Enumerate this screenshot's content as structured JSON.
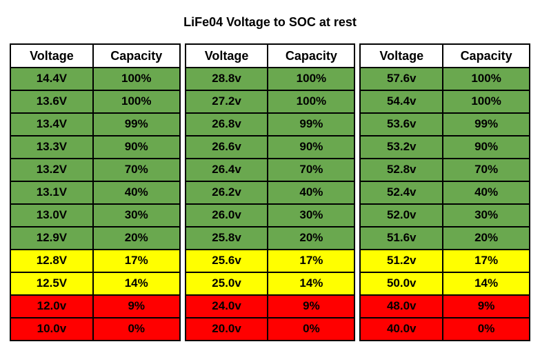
{
  "title": "LiFe04 Voltage to SOC at rest",
  "colors": {
    "green": "#6aa84f",
    "yellow": "#ffff00",
    "red": "#ff0000",
    "header_bg": "#ffffff",
    "border": "#000000",
    "text": "#000000"
  },
  "columns": [
    "Voltage",
    "Capacity"
  ],
  "tables": [
    {
      "rows": [
        {
          "voltage": "14.4V",
          "capacity": "100%",
          "color": "green"
        },
        {
          "voltage": "13.6V",
          "capacity": "100%",
          "color": "green"
        },
        {
          "voltage": "13.4V",
          "capacity": "99%",
          "color": "green"
        },
        {
          "voltage": "13.3V",
          "capacity": "90%",
          "color": "green"
        },
        {
          "voltage": "13.2V",
          "capacity": "70%",
          "color": "green"
        },
        {
          "voltage": "13.1V",
          "capacity": "40%",
          "color": "green"
        },
        {
          "voltage": "13.0V",
          "capacity": "30%",
          "color": "green"
        },
        {
          "voltage": "12.9V",
          "capacity": "20%",
          "color": "green"
        },
        {
          "voltage": "12.8V",
          "capacity": "17%",
          "color": "yellow"
        },
        {
          "voltage": "12.5V",
          "capacity": "14%",
          "color": "yellow"
        },
        {
          "voltage": "12.0v",
          "capacity": "9%",
          "color": "red"
        },
        {
          "voltage": "10.0v",
          "capacity": "0%",
          "color": "red"
        }
      ]
    },
    {
      "rows": [
        {
          "voltage": "28.8v",
          "capacity": "100%",
          "color": "green"
        },
        {
          "voltage": "27.2v",
          "capacity": "100%",
          "color": "green"
        },
        {
          "voltage": "26.8v",
          "capacity": "99%",
          "color": "green"
        },
        {
          "voltage": "26.6v",
          "capacity": "90%",
          "color": "green"
        },
        {
          "voltage": "26.4v",
          "capacity": "70%",
          "color": "green"
        },
        {
          "voltage": "26.2v",
          "capacity": "40%",
          "color": "green"
        },
        {
          "voltage": "26.0v",
          "capacity": "30%",
          "color": "green"
        },
        {
          "voltage": "25.8v",
          "capacity": "20%",
          "color": "green"
        },
        {
          "voltage": "25.6v",
          "capacity": "17%",
          "color": "yellow"
        },
        {
          "voltage": "25.0v",
          "capacity": "14%",
          "color": "yellow"
        },
        {
          "voltage": "24.0v",
          "capacity": "9%",
          "color": "red"
        },
        {
          "voltage": "20.0v",
          "capacity": "0%",
          "color": "red"
        }
      ]
    },
    {
      "rows": [
        {
          "voltage": "57.6v",
          "capacity": "100%",
          "color": "green"
        },
        {
          "voltage": "54.4v",
          "capacity": "100%",
          "color": "green"
        },
        {
          "voltage": "53.6v",
          "capacity": "99%",
          "color": "green"
        },
        {
          "voltage": "53.2v",
          "capacity": "90%",
          "color": "green"
        },
        {
          "voltage": "52.8v",
          "capacity": "70%",
          "color": "green"
        },
        {
          "voltage": "52.4v",
          "capacity": "40%",
          "color": "green"
        },
        {
          "voltage": "52.0v",
          "capacity": "30%",
          "color": "green"
        },
        {
          "voltage": "51.6v",
          "capacity": "20%",
          "color": "green"
        },
        {
          "voltage": "51.2v",
          "capacity": "17%",
          "color": "yellow"
        },
        {
          "voltage": "50.0v",
          "capacity": "14%",
          "color": "yellow"
        },
        {
          "voltage": "48.0v",
          "capacity": "9%",
          "color": "red"
        },
        {
          "voltage": "40.0v",
          "capacity": "0%",
          "color": "red"
        }
      ]
    }
  ]
}
